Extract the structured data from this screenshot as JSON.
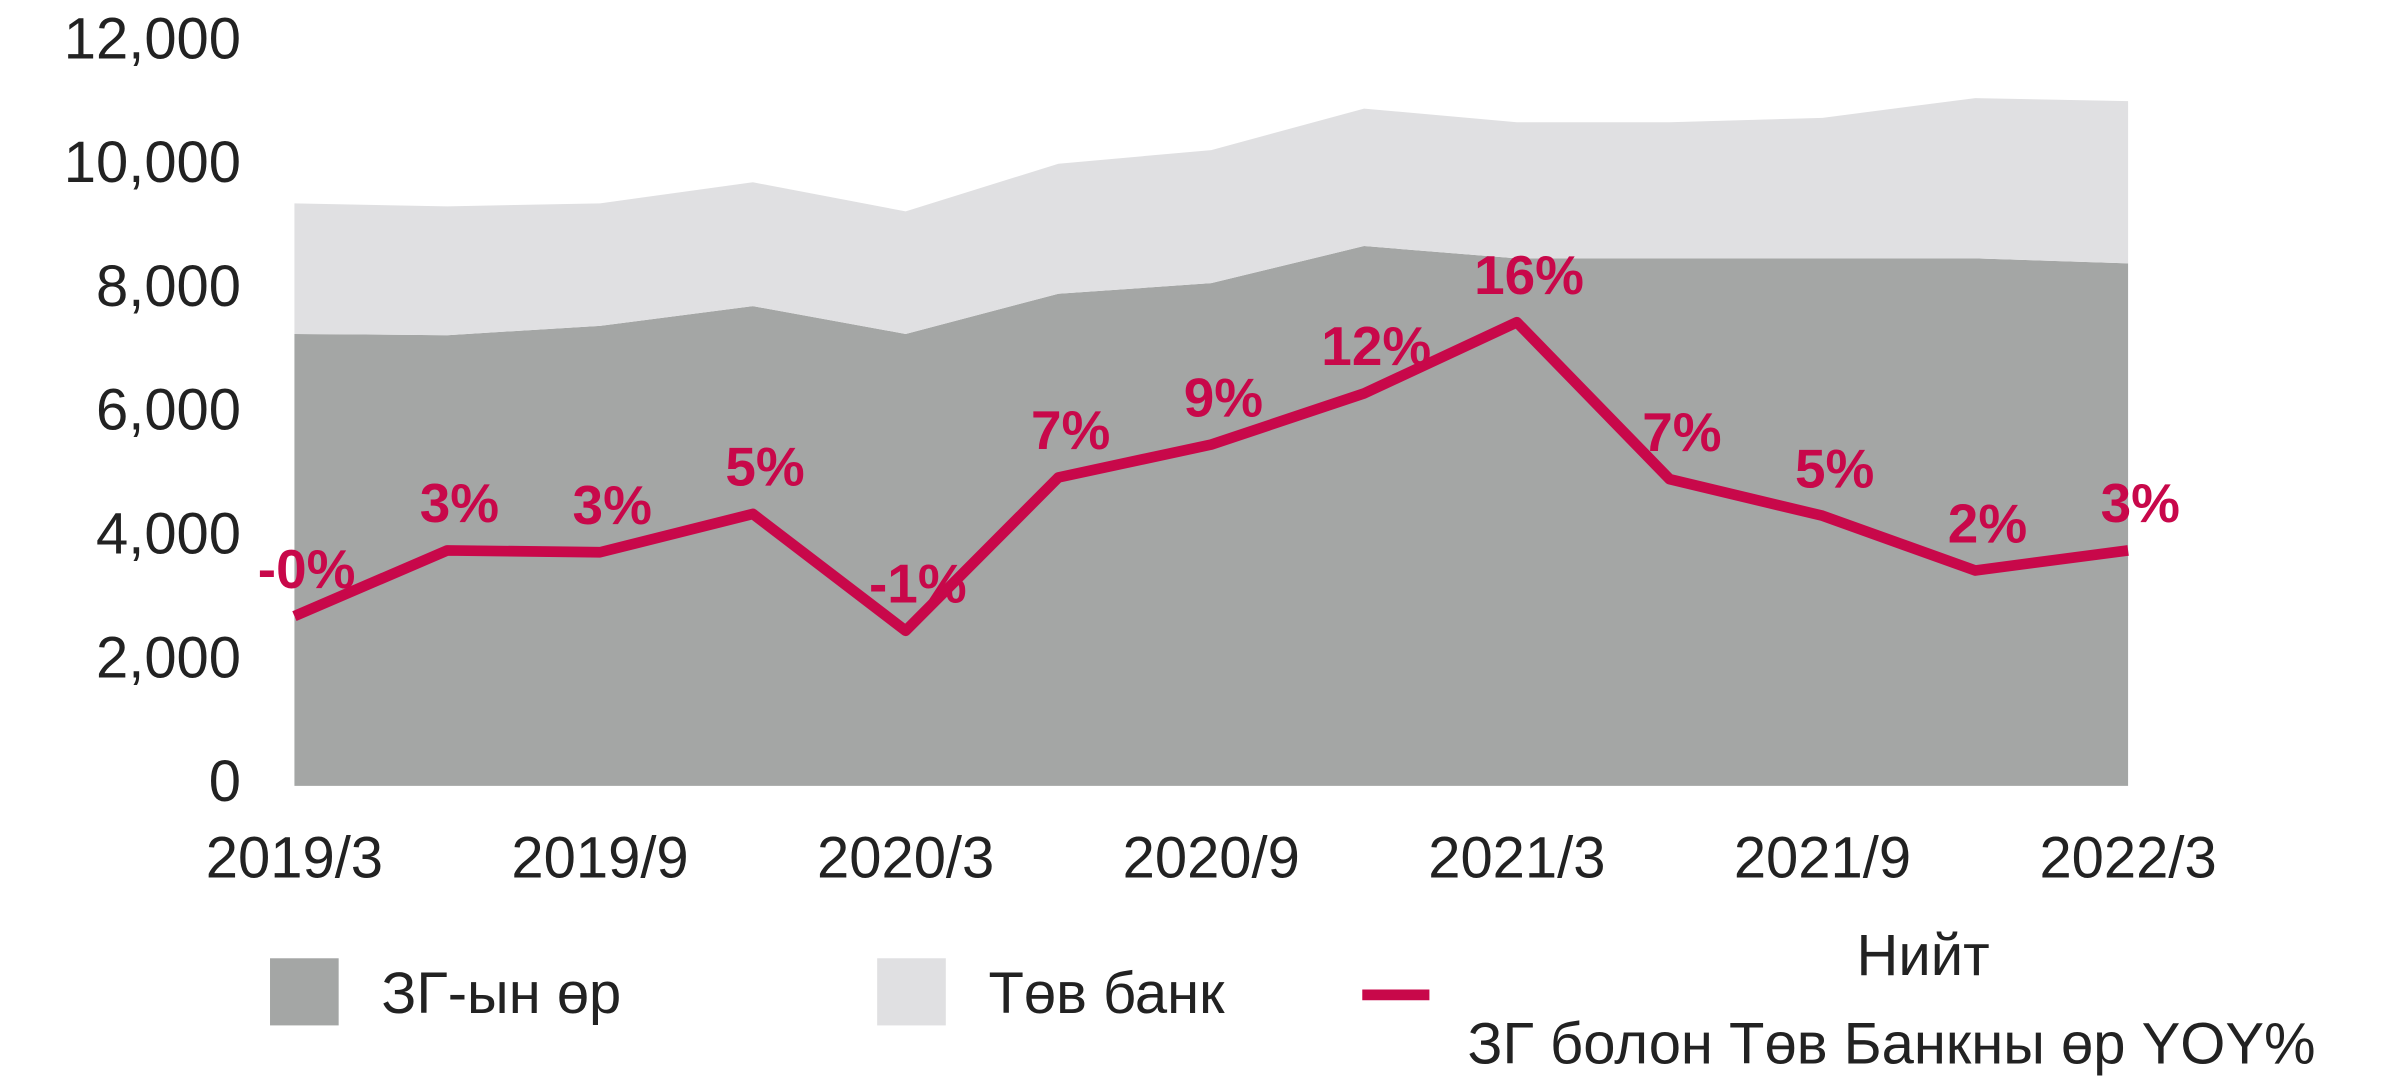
{
  "chart_data": {
    "type": "stacked_area_line",
    "categories": [
      "2019/3",
      null,
      "2019/9",
      null,
      "2020/3",
      null,
      "2020/9",
      null,
      "2021/3",
      null,
      "2021/9",
      null,
      "2022/3"
    ],
    "ylim": [
      0,
      12000
    ],
    "yticks": [
      {
        "value": 0,
        "label": "0"
      },
      {
        "value": 2000,
        "label": "2,000"
      },
      {
        "value": 4000,
        "label": "4,000"
      },
      {
        "value": 6000,
        "label": "6,000"
      },
      {
        "value": 8000,
        "label": "8,000"
      },
      {
        "value": 10000,
        "label": "10,000"
      },
      {
        "value": 12000,
        "label": "12,000"
      }
    ],
    "y2lim": [
      -9.5,
      31.2
    ],
    "series": [
      {
        "name": "ЗГ-ын өр",
        "color": "#a4a6a5",
        "kind": "area",
        "values": [
          7300,
          7280,
          7430,
          7750,
          7300,
          7950,
          8120,
          8720,
          8520,
          8520,
          8520,
          8520,
          8440
        ]
      },
      {
        "name": "Төв банк",
        "color": "#e0e0e2",
        "kind": "area",
        "values": [
          2110,
          2080,
          1980,
          2000,
          1980,
          2100,
          2150,
          2220,
          2200,
          2200,
          2270,
          2590,
          2620
        ]
      },
      {
        "name": "Нийт\nЗГ болон Төв Банкны өр YOY%",
        "color": "#c8084a",
        "kind": "line",
        "axis": "y2",
        "values": [
          -0.2,
          3.4,
          3.3,
          5.4,
          -1.0,
          7.4,
          9.2,
          12.0,
          15.9,
          7.3,
          5.3,
          2.3,
          3.4
        ],
        "value_labels": [
          "-0%",
          "3%",
          "3%",
          "5%",
          "-1%",
          "7%",
          "9%",
          "12%",
          "16%",
          "7%",
          "5%",
          "2%",
          "3%"
        ]
      }
    ],
    "legend": "bottom"
  }
}
